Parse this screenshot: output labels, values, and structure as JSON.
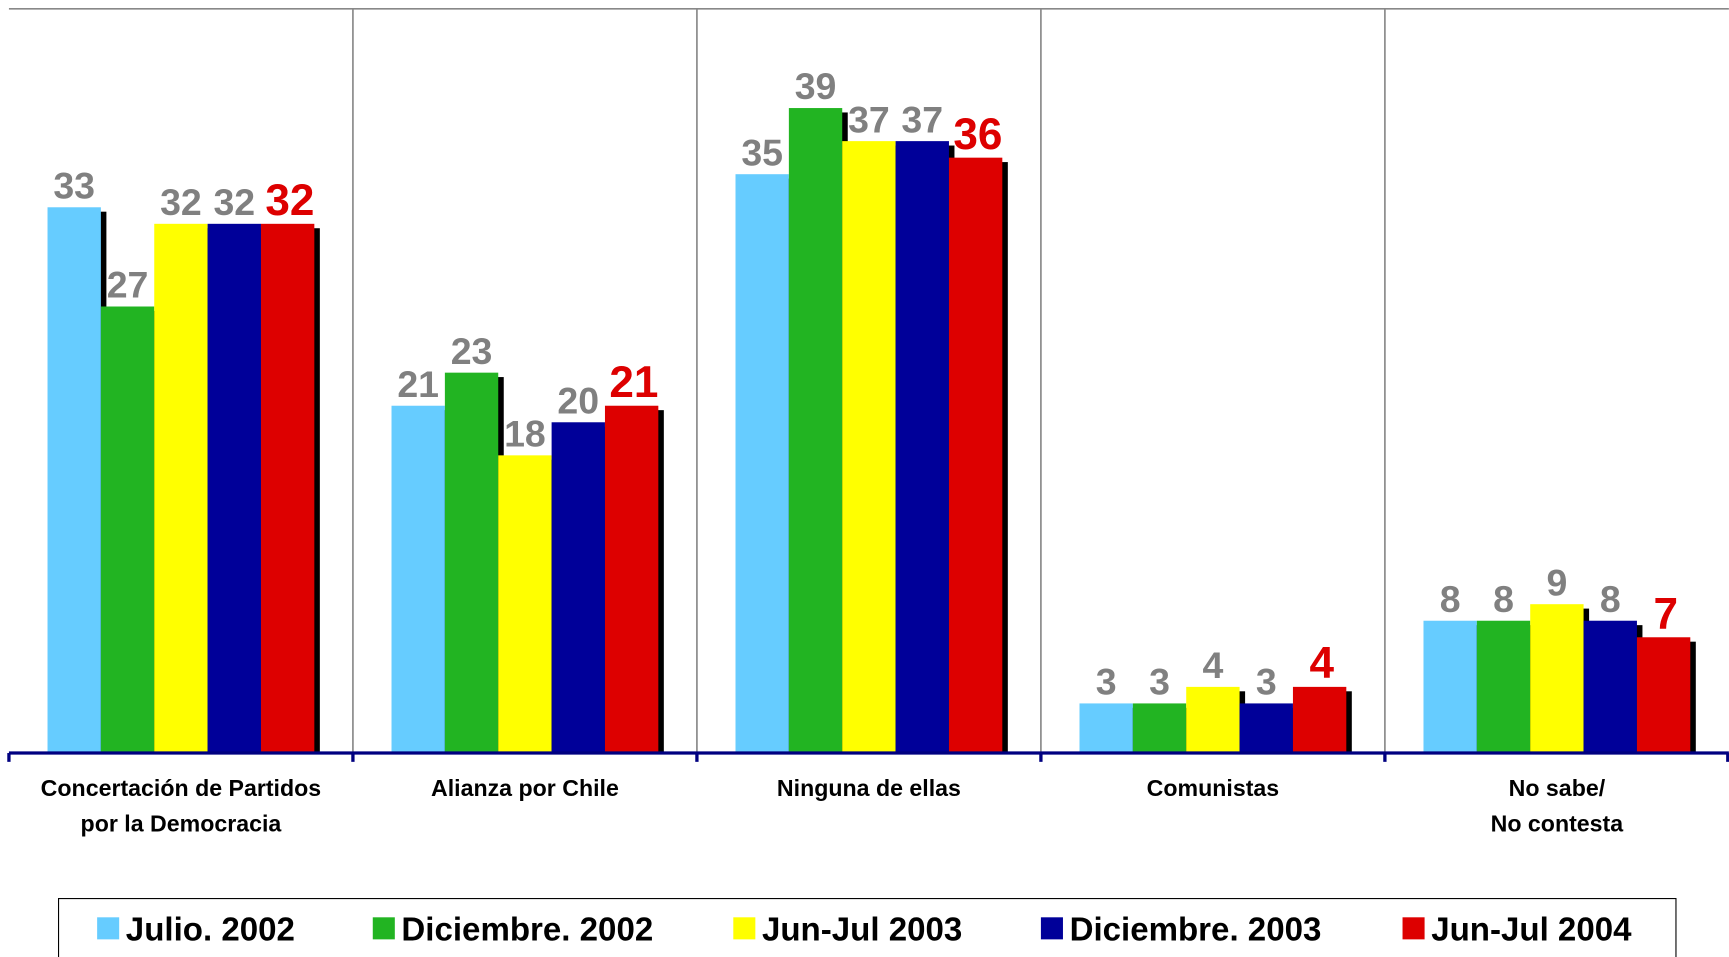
{
  "chart_data": {
    "type": "bar",
    "categories": [
      "Concertación de Partidos\npor la Democracia",
      "Alianza por Chile",
      "Ninguna de ellas",
      "Comunistas",
      "No sabe/\nNo contesta"
    ],
    "series": [
      {
        "name": "Julio. 2002",
        "color": "#66ccff",
        "label_color": "#808080",
        "values": [
          33,
          21,
          35,
          3,
          8
        ]
      },
      {
        "name": "Diciembre. 2002",
        "color": "#22b422",
        "label_color": "#808080",
        "values": [
          27,
          23,
          39,
          3,
          8
        ]
      },
      {
        "name": "Jun-Jul 2003",
        "color": "#ffff00",
        "label_color": "#808080",
        "values": [
          32,
          18,
          37,
          4,
          9
        ]
      },
      {
        "name": "Diciembre. 2003",
        "color": "#000099",
        "label_color": "#808080",
        "values": [
          32,
          20,
          37,
          3,
          8
        ]
      },
      {
        "name": "Jun-Jul 2004",
        "color": "#dd0000",
        "label_color": "#dd0000",
        "values": [
          32,
          21,
          36,
          4,
          7
        ]
      }
    ],
    "ylim": [
      0,
      45
    ],
    "legend": "bottom"
  }
}
